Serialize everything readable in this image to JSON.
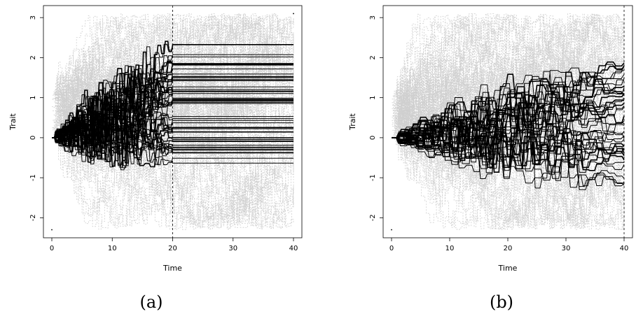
{
  "chart_data": [
    {
      "type": "line",
      "panel_label": "(a)",
      "xlabel": "Time",
      "ylabel": "Trait",
      "xlim": [
        0,
        40
      ],
      "ylim": [
        -2.5,
        3.3
      ],
      "xticks": [
        "0",
        "10",
        "20",
        "30",
        "40"
      ],
      "yticks": [
        "-2",
        "-1",
        "0",
        "1",
        "2",
        "3"
      ],
      "vline_x": 20,
      "background_series": {
        "color": "#cfcfcf",
        "style": "dashed",
        "count": 120,
        "x_range": [
          0,
          40
        ],
        "y_center": 0.6,
        "y_spread": 1.0
      },
      "foreground_series": {
        "color": "#000000",
        "count": 50,
        "x_range": [
          0,
          20
        ],
        "start_y": 0,
        "end_y_range": [
          -0.7,
          2.35
        ],
        "extended_flat_to": 40
      },
      "extreme_points": [
        {
          "x": 0,
          "y": -2.3
        },
        {
          "x": 40,
          "y": 3.1
        }
      ]
    },
    {
      "type": "line",
      "panel_label": "(b)",
      "xlabel": "Time",
      "ylabel": "Trait",
      "xlim": [
        0,
        40
      ],
      "ylim": [
        -2.5,
        3.3
      ],
      "xticks": [
        "0",
        "10",
        "20",
        "30",
        "40"
      ],
      "yticks": [
        "-2",
        "-1",
        "0",
        "1",
        "2",
        "3"
      ],
      "vline_x": 40,
      "background_series": {
        "color": "#cfcfcf",
        "style": "dashed",
        "count": 120,
        "x_range": [
          0,
          40
        ],
        "y_center": 0.6,
        "y_spread": 1.0
      },
      "foreground_series": {
        "color": "#000000",
        "count": 40,
        "x_range": [
          0,
          40
        ],
        "start_y": 0,
        "end_y_range": [
          -1.2,
          1.9
        ]
      },
      "extreme_points": [
        {
          "x": 0,
          "y": -2.3
        }
      ]
    }
  ]
}
